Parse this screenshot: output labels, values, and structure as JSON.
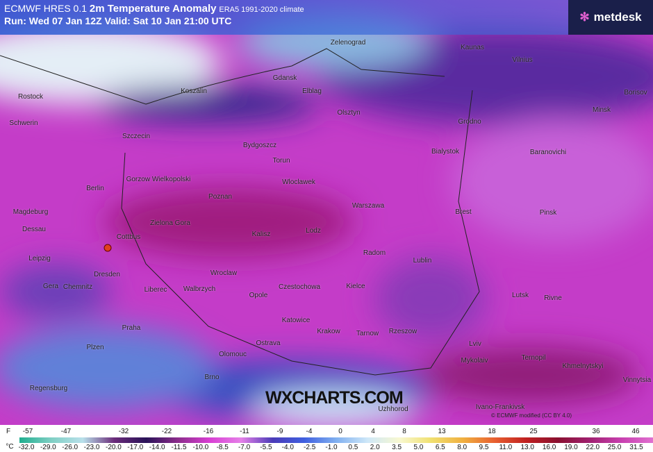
{
  "header": {
    "model": "ECMWF HRES 0.1",
    "title": "2m Temperature Anomaly",
    "climate": "ERA5 1991-2020 climate",
    "run": "Run: Wed 07 Jan 12Z Valid: Sat 10 Jan 21:00 UTC"
  },
  "logo": "metdesk",
  "cities": [
    "Zelenograd",
    "Kaunas",
    "Vilnius",
    "Rostock",
    "Koszalin",
    "Gdansk",
    "Elblag",
    "Olsztyn",
    "Borisov",
    "Minsk",
    "Grodno",
    "Schwerin",
    "Szczecin",
    "Bydgoszcz",
    "Bialystok",
    "Baranovichi",
    "Torun",
    "Gorzow Wielkopolski",
    "Wloclawek",
    "Berlin",
    "Poznan",
    "Warszawa",
    "Brest",
    "Pinsk",
    "Magdeburg",
    "Dessau",
    "Zielona Gora",
    "Kalisz",
    "Lodz",
    "Cottbus",
    "Radom",
    "Lublin",
    "Leipzig",
    "Dresden",
    "Wroclaw",
    "Gera",
    "Chemnitz",
    "Liberec",
    "Walbrzych",
    "Opole",
    "Czestochowa",
    "Kielce",
    "Lutsk",
    "Rivne",
    "Katowice",
    "Krakow",
    "Tarnow",
    "Rzeszow",
    "Praha",
    "Ostrava",
    "Lviv",
    "Plzen",
    "Olomouc",
    "Mykolaiv",
    "Ternopil",
    "Khmelnytskyi",
    "Brno",
    "Vinnytsia",
    "Regensburg",
    "Ivano-Frankivsk",
    "Uzhhorod"
  ],
  "watermark": "WXCHARTS.COM",
  "credit": "© ECMWF  modified (CC BY 4.0)",
  "colorbar": {
    "f_unit": "F",
    "f_labels": [
      "-57",
      "-47",
      "-32",
      "-22",
      "-16",
      "-11",
      "-9",
      "-4",
      "0",
      "4",
      "8",
      "13",
      "18",
      "25",
      "36",
      "46"
    ],
    "c_unit": "°C",
    "c_labels": [
      "-32.0",
      "-29.0",
      "-26.0",
      "-23.0",
      "-20.0",
      "-17.0",
      "-14.0",
      "-11.5",
      "-10.0",
      "-8.5",
      "-7.0",
      "-5.5",
      "-4.0",
      "-2.5",
      "-1.0",
      "0.5",
      "2.0",
      "3.5",
      "5.0",
      "6.5",
      "8.0",
      "9.5",
      "11.0",
      "13.0",
      "16.0",
      "19.0",
      "22.0",
      "25.0",
      "31.5"
    ]
  }
}
